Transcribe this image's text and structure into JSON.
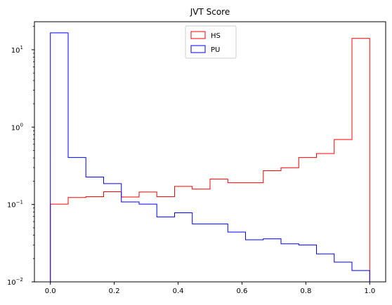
{
  "chart_data": {
    "type": "histogram-step",
    "title": "JVT Score",
    "xlabel": "",
    "ylabel": "",
    "xlim": [
      -0.05,
      1.05
    ],
    "ylim": [
      0.01,
      23
    ],
    "yscale": "log",
    "grid": false,
    "legend_position": "top-center",
    "x_ticks": [
      0.0,
      0.2,
      0.4,
      0.6,
      0.8,
      1.0
    ],
    "x_tick_labels": [
      "0.0",
      "0.2",
      "0.4",
      "0.6",
      "0.8",
      "1.0"
    ],
    "y_ticks": [
      0.01,
      0.1,
      1,
      10
    ],
    "y_tick_labels": [
      "10",
      "10",
      "10",
      "10"
    ],
    "y_tick_exponents": [
      "−2",
      "−1",
      "0",
      "1"
    ],
    "bin_edges": [
      0.0,
      0.0556,
      0.1111,
      0.1667,
      0.2222,
      0.2778,
      0.3333,
      0.3889,
      0.4444,
      0.5,
      0.5556,
      0.6111,
      0.6667,
      0.7222,
      0.7778,
      0.8333,
      0.8889,
      0.9444,
      1.0
    ],
    "series": [
      {
        "name": "HS",
        "color": "#ff0000",
        "values": [
          0.101,
          0.123,
          0.126,
          0.146,
          0.125,
          0.145,
          0.126,
          0.171,
          0.158,
          0.213,
          0.191,
          0.191,
          0.273,
          0.298,
          0.405,
          0.455,
          0.69,
          14.0
        ]
      },
      {
        "name": "PU",
        "color": "#0000ff",
        "values": [
          16.5,
          0.405,
          0.226,
          0.186,
          0.108,
          0.101,
          0.069,
          0.078,
          0.056,
          0.056,
          0.044,
          0.035,
          0.036,
          0.031,
          0.03,
          0.023,
          0.018,
          0.014
        ]
      }
    ]
  }
}
